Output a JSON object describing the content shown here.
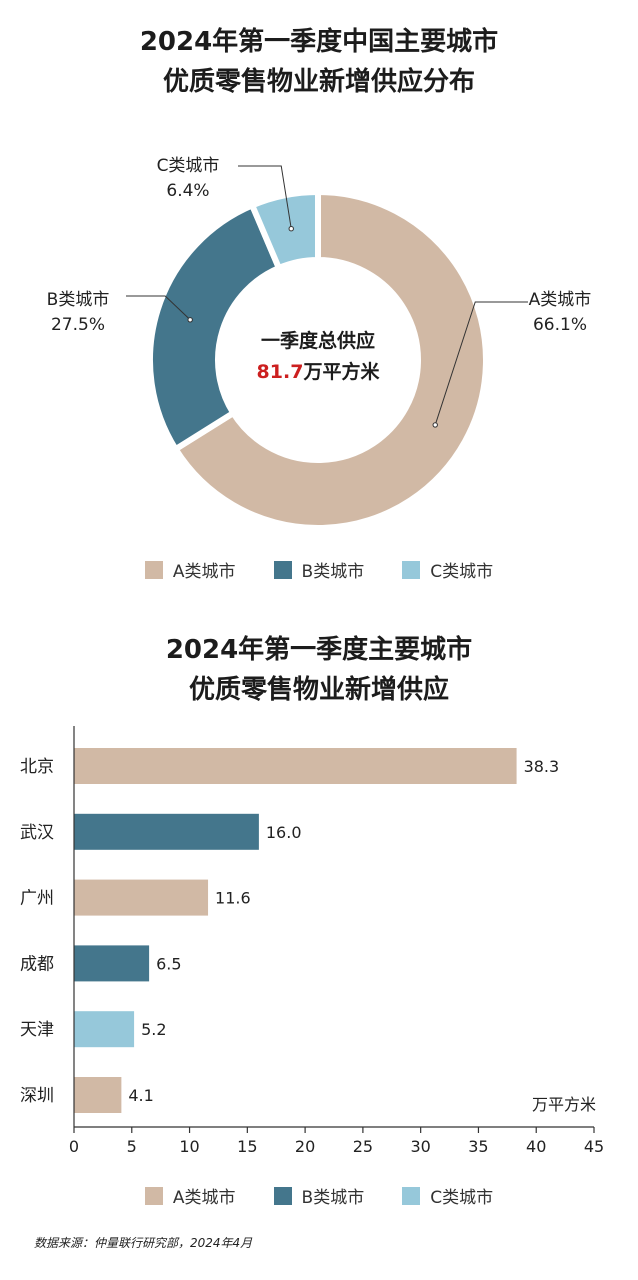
{
  "colors": {
    "A": "#d1b9a5",
    "B": "#44768c",
    "C": "#96c8da",
    "highlight": "#cc1f1f",
    "axis": "#333333"
  },
  "donut": {
    "title_lines": [
      "2024年第一季度中国主要城市",
      "优质零售物业新增供应分布"
    ],
    "center_label": "一季度总供应",
    "center_value": "81.7",
    "center_unit": "万平方米"
  },
  "bar": {
    "title_lines": [
      "2024年第一季度主要城市",
      "优质零售物业新增供应"
    ],
    "unit": "万平方米"
  },
  "legend": [
    {
      "label": "A类城市",
      "key": "A"
    },
    {
      "label": "B类城市",
      "key": "B"
    },
    {
      "label": "C类城市",
      "key": "C"
    }
  ],
  "source": "数据来源：仲量联行研究部，2024年4月",
  "chart_data": [
    {
      "type": "pie",
      "title": "2024年第一季度中国主要城市优质零售物业新增供应分布",
      "categories": [
        "A类城市",
        "B类城市",
        "C类城市"
      ],
      "values": [
        66.1,
        27.5,
        6.4
      ],
      "value_labels": [
        "66.1%",
        "27.5%",
        "6.4%"
      ],
      "center_text": "一季度总供应 81.7万平方米",
      "legend": "bottom"
    },
    {
      "type": "bar",
      "orientation": "horizontal",
      "title": "2024年第一季度主要城市优质零售物业新增供应",
      "categories": [
        "北京",
        "武汉",
        "广州",
        "成都",
        "天津",
        "深圳"
      ],
      "values": [
        38.3,
        16.0,
        11.6,
        6.5,
        5.2,
        4.1
      ],
      "value_labels": [
        "38.3",
        "16.0",
        "11.6",
        "6.5",
        "5.2",
        "4.1"
      ],
      "city_class": [
        "A",
        "B",
        "A",
        "B",
        "C",
        "A"
      ],
      "xlim": [
        0,
        45
      ],
      "xticks": [
        0,
        5,
        10,
        15,
        20,
        25,
        30,
        35,
        40,
        45
      ],
      "xlabel": "万平方米",
      "grid": false,
      "legend": "bottom"
    }
  ]
}
